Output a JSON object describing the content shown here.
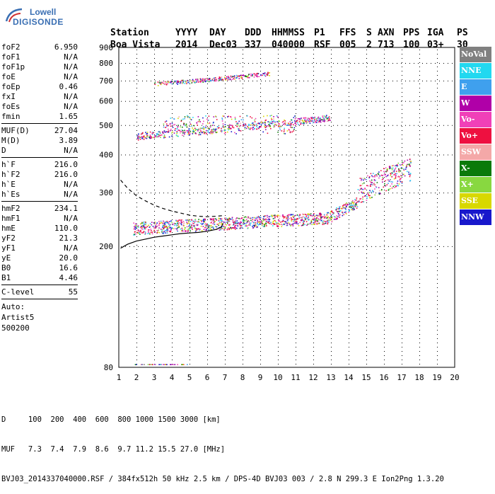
{
  "logo": {
    "line1": "Lowell",
    "line2": "DIGISONDE"
  },
  "header": {
    "row1": [
      "Station",
      "YYYY",
      "DAY",
      "DDD",
      "HHMMSS",
      "P1",
      "FFS",
      "S",
      "AXN",
      "PPS",
      "IGA",
      "PS"
    ],
    "row2": [
      "Boa Vista",
      "2014",
      "Dec03",
      "337",
      "040000",
      "RSF",
      "005",
      "2",
      "713",
      "100",
      "03+",
      "30"
    ]
  },
  "params": {
    "group1": [
      {
        "key": "foF2",
        "value": "6.950"
      },
      {
        "key": "foF1",
        "value": "N/A"
      },
      {
        "key": "foF1p",
        "value": "N/A"
      },
      {
        "key": "foE",
        "value": "N/A"
      },
      {
        "key": "foEp",
        "value": "0.46"
      },
      {
        "key": "fxI",
        "value": "N/A"
      },
      {
        "key": "foEs",
        "value": "N/A"
      },
      {
        "key": "fmin",
        "value": "1.65"
      }
    ],
    "group2": [
      {
        "key": "MUF(D)",
        "value": "27.04"
      },
      {
        "key": "M(D)",
        "value": "3.89"
      },
      {
        "key": "D",
        "value": "N/A"
      }
    ],
    "group3": [
      {
        "key": "h`F",
        "value": "216.0"
      },
      {
        "key": "h`F2",
        "value": "216.0"
      },
      {
        "key": "h`E",
        "value": "N/A"
      },
      {
        "key": "h`Es",
        "value": "N/A"
      }
    ],
    "group4": [
      {
        "key": "hmF2",
        "value": "234.1"
      },
      {
        "key": "hmF1",
        "value": "N/A"
      },
      {
        "key": "hmE",
        "value": "110.0"
      },
      {
        "key": "yF2",
        "value": "21.3"
      },
      {
        "key": "yF1",
        "value": "N/A"
      },
      {
        "key": "yE",
        "value": "20.0"
      },
      {
        "key": "B0",
        "value": "16.6"
      },
      {
        "key": "B1",
        "value": "4.46"
      }
    ],
    "clevel": {
      "key": "C-level",
      "value": "55"
    },
    "auto": [
      "Auto:",
      "Artist5",
      "500200"
    ]
  },
  "legend": [
    {
      "label": "NoVal",
      "color": "#808080"
    },
    {
      "label": "NNE",
      "color": "#22d8f0"
    },
    {
      "label": "E",
      "color": "#3fa0ee"
    },
    {
      "label": "W",
      "color": "#b000a8"
    },
    {
      "label": "Vo-",
      "color": "#f040b8"
    },
    {
      "label": "Vo+",
      "color": "#ee1040"
    },
    {
      "label": "SSW",
      "color": "#f4a8a8"
    },
    {
      "label": "X-",
      "color": "#0a7a0a"
    },
    {
      "label": "X+",
      "color": "#88d840"
    },
    {
      "label": "SSE",
      "color": "#d8d800"
    },
    {
      "label": "NNW",
      "color": "#1818cc"
    }
  ],
  "chart_data": {
    "type": "scatter",
    "xlim": [
      1,
      20
    ],
    "ylim": [
      80,
      900
    ],
    "x_ticks": [
      "1",
      "2",
      "3",
      "4",
      "5",
      "6",
      "7",
      "8",
      "9",
      "10",
      "11",
      "12",
      "13",
      "14",
      "15",
      "16",
      "17",
      "18",
      "19",
      "20"
    ],
    "y_ticks": [
      "80",
      "200",
      "300",
      "400",
      "500",
      "600",
      "700",
      "800",
      "900"
    ],
    "y_scale": "log",
    "grid": true,
    "traces": [
      {
        "name": "virtual-height-trace",
        "color": "#000000",
        "points": [
          [
            1.1,
            197
          ],
          [
            1.5,
            203
          ],
          [
            2,
            208
          ],
          [
            2.5,
            211
          ],
          [
            3,
            214
          ],
          [
            3.5,
            216
          ],
          [
            4,
            218
          ],
          [
            4.5,
            220
          ],
          [
            5,
            221
          ],
          [
            5.5,
            222
          ],
          [
            6,
            224
          ],
          [
            6.5,
            227
          ],
          [
            6.8,
            231
          ],
          [
            6.9,
            238
          ]
        ]
      },
      {
        "name": "profile-extrapolation",
        "color": "#000000",
        "dashed": true,
        "points": [
          [
            1.1,
            330
          ],
          [
            1.5,
            310
          ],
          [
            2,
            293
          ],
          [
            2.5,
            282
          ],
          [
            3,
            273
          ],
          [
            3.5,
            266
          ],
          [
            4,
            261
          ],
          [
            4.5,
            257
          ],
          [
            5,
            253
          ],
          [
            5.5,
            251
          ],
          [
            6,
            250
          ],
          [
            6.5,
            251
          ],
          [
            6.9,
            252
          ]
        ]
      }
    ],
    "echo_bands": [
      {
        "name": "F-layer",
        "x": [
          1.8,
          17.5
        ],
        "y_start": [
          225,
          228
        ],
        "y_end": [
          250,
          330
        ]
      },
      {
        "name": "second-hop",
        "x": [
          2.0,
          13.0
        ],
        "y_start": [
          448,
          455
        ],
        "y_end": [
          510,
          545
        ]
      },
      {
        "name": "third-hop",
        "x": [
          3.0,
          9.5
        ],
        "y_start": [
          685,
          690
        ],
        "y_end": [
          720,
          740
        ]
      }
    ]
  },
  "bottom": {
    "line1": "D     100  200  400  600  800 1000 1500 3000 [km]",
    "line2": "MUF   7.3  7.4  7.9  8.6  9.7 11.2 15.5 27.0 [MHz]",
    "line3": "BVJ03_2014337040000.RSF / 384fx512h 50 kHz 2.5 km / DPS-4D BVJ03 003 / 2.8 N 299.3 E Ion2Png 1.3.20"
  }
}
